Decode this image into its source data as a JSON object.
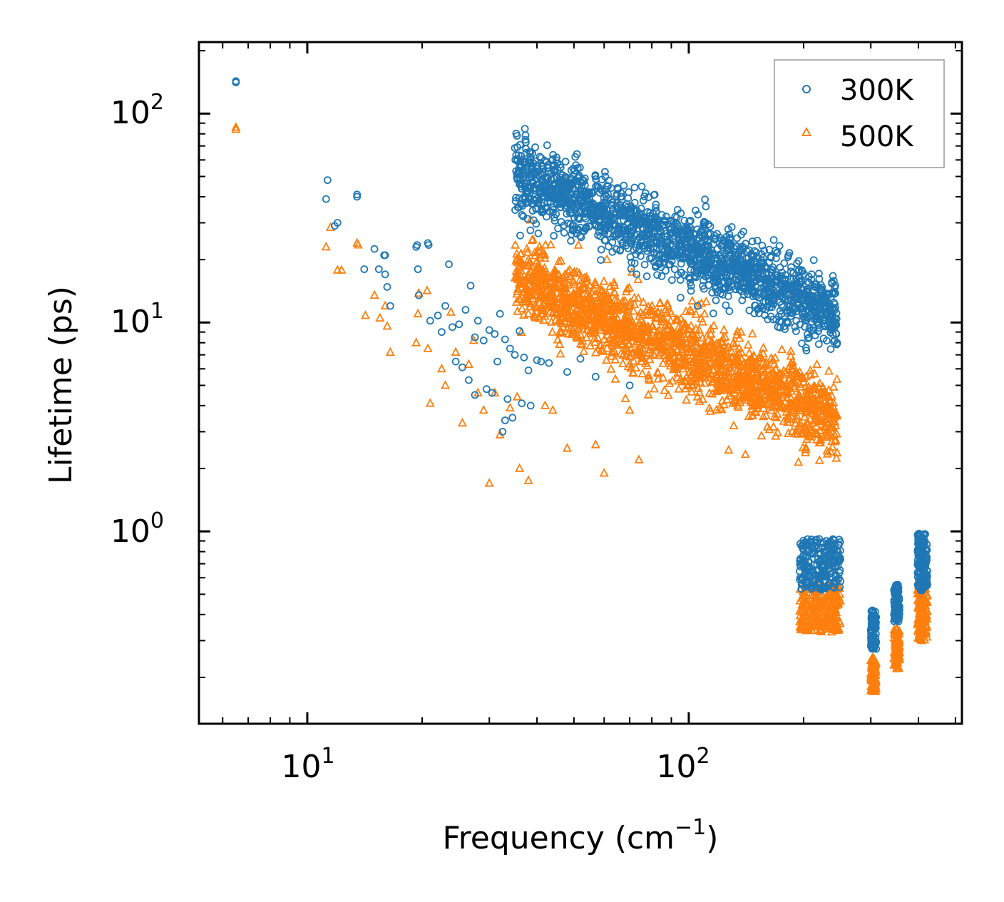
{
  "chart_data": {
    "type": "scatter",
    "xscale": "log",
    "yscale": "log",
    "xlim": [
      5.2,
      520
    ],
    "ylim": [
      0.12,
      220
    ],
    "xlabel": {
      "text": "Frequency (cm",
      "sup": "−1",
      "tail": ")"
    },
    "ylabel": "Lifetime (ps)",
    "x_ticks": [
      {
        "value": 10,
        "base": "10",
        "exp": "1"
      },
      {
        "value": 100,
        "base": "10",
        "exp": "2"
      }
    ],
    "y_ticks": [
      {
        "value": 1,
        "base": "10",
        "exp": "0"
      },
      {
        "value": 10,
        "base": "10",
        "exp": "1"
      },
      {
        "value": 100,
        "base": "10",
        "exp": "2"
      }
    ],
    "legend_position": "top-right",
    "series": [
      {
        "name": "300K",
        "marker": "circle",
        "color": "#1f77b4",
        "points": [
          [
            6.5,
            143
          ],
          [
            6.5,
            141
          ],
          [
            11.3,
            48
          ],
          [
            11.2,
            39
          ],
          [
            11.8,
            29
          ],
          [
            12.0,
            30
          ],
          [
            13.5,
            41
          ],
          [
            13.5,
            40
          ],
          [
            14.1,
            18
          ],
          [
            15.0,
            22.5
          ],
          [
            15.4,
            18
          ],
          [
            15.9,
            21
          ],
          [
            16.0,
            21
          ],
          [
            16.0,
            17
          ],
          [
            16.2,
            14.8
          ],
          [
            16.5,
            12
          ],
          [
            19.3,
            23
          ],
          [
            19.4,
            23.5
          ],
          [
            19.5,
            18
          ],
          [
            19.6,
            13.5
          ],
          [
            20.7,
            24
          ],
          [
            20.8,
            23.5
          ],
          [
            21.0,
            10.2
          ],
          [
            22.0,
            10.8
          ],
          [
            22.5,
            9
          ],
          [
            23.0,
            12
          ],
          [
            23.5,
            19
          ],
          [
            24.0,
            9.5
          ],
          [
            25.0,
            9.8
          ],
          [
            26.0,
            11.5
          ],
          [
            26.8,
            15
          ],
          [
            27.5,
            8.5
          ],
          [
            28.0,
            10.2
          ],
          [
            29.0,
            8.2
          ],
          [
            30.0,
            9.2
          ],
          [
            31.0,
            8.8
          ],
          [
            32.0,
            11
          ],
          [
            33.0,
            8.3
          ],
          [
            34.0,
            7.5
          ],
          [
            35.0,
            7.0
          ],
          [
            36.0,
            9.1
          ],
          [
            37.0,
            6.8
          ],
          [
            38.0,
            5.9
          ],
          [
            40.0,
            6.6
          ],
          [
            41.0,
            6.5
          ],
          [
            43.0,
            6.4
          ],
          [
            48.0,
            5.8
          ],
          [
            52.0,
            6.7
          ],
          [
            57.0,
            5.5
          ],
          [
            70.0,
            5.0
          ],
          [
            30.5,
            4.6
          ],
          [
            31.5,
            6.5
          ],
          [
            33.5,
            4.3
          ],
          [
            34.5,
            3.5
          ],
          [
            36.5,
            4.1
          ],
          [
            38.5,
            4.0
          ],
          [
            24.5,
            6.5
          ],
          [
            25.5,
            6.1
          ],
          [
            26.5,
            5.3
          ],
          [
            27.5,
            4.5
          ],
          [
            29.5,
            4.8
          ],
          [
            32.5,
            3.0
          ],
          [
            33.0,
            3.4
          ]
        ]
      },
      {
        "name": "500K",
        "marker": "triangle",
        "color": "#ff7f0e",
        "points": [
          [
            6.5,
            86
          ],
          [
            6.5,
            84
          ],
          [
            11.2,
            23
          ],
          [
            11.5,
            28.5
          ],
          [
            12.0,
            17.8
          ],
          [
            12.3,
            17.8
          ],
          [
            13.5,
            24
          ],
          [
            13.6,
            23.5
          ],
          [
            14.2,
            10.8
          ],
          [
            15.0,
            13.5
          ],
          [
            15.5,
            10.5
          ],
          [
            16.0,
            12
          ],
          [
            16.2,
            9.6
          ],
          [
            16.5,
            7.2
          ],
          [
            19.3,
            8
          ],
          [
            19.5,
            11
          ],
          [
            19.6,
            13.8
          ],
          [
            20.6,
            14.2
          ],
          [
            20.7,
            7.5
          ],
          [
            21.0,
            4.1
          ],
          [
            22.5,
            6
          ],
          [
            23.0,
            5.0
          ],
          [
            23.8,
            11.2
          ],
          [
            24.5,
            7.2
          ],
          [
            25.5,
            3.3
          ],
          [
            26.5,
            6.3
          ],
          [
            27.3,
            8.2
          ],
          [
            28.0,
            4.6
          ],
          [
            29.0,
            3.8
          ],
          [
            30.0,
            1.7
          ],
          [
            31.0,
            4.6
          ],
          [
            32.0,
            2.9
          ],
          [
            34.0,
            3.9
          ],
          [
            35.5,
            4.4
          ],
          [
            36.0,
            2.0
          ],
          [
            38.0,
            1.75
          ],
          [
            42.0,
            4.0
          ],
          [
            44.0,
            3.8
          ],
          [
            48.0,
            2.5
          ],
          [
            57.0,
            2.6
          ],
          [
            60.0,
            1.9
          ],
          [
            70.0,
            3.8
          ],
          [
            74.0,
            2.2
          ]
        ]
      }
    ],
    "dense_regions": [
      {
        "series": "300K",
        "x_start": 35,
        "x_end": 245,
        "a": 2.95,
        "b": -0.8,
        "center_frac": 0.52,
        "spread": 0.14,
        "count": 1800,
        "bumps": [
          [
            55,
            4.9
          ],
          [
            90,
            3.2
          ]
        ]
      },
      {
        "series": "500K",
        "x_start": 35,
        "x_end": 245,
        "a": 2.45,
        "b": -0.8,
        "center_frac": 0.52,
        "spread": 0.15,
        "count": 1800,
        "bumps": [
          [
            48,
            2.8
          ],
          [
            90,
            2.2
          ]
        ]
      },
      {
        "series": "300K",
        "x_start": 195,
        "x_end": 250,
        "ymin": 0.52,
        "ymax": 0.92,
        "count": 240
      },
      {
        "series": "500K",
        "x_start": 195,
        "x_end": 250,
        "ymin": 0.33,
        "ymax": 0.55,
        "count": 240
      },
      {
        "series": "300K",
        "x_start": 300,
        "x_end": 310,
        "ymin": 0.27,
        "ymax": 0.42,
        "count": 90
      },
      {
        "series": "500K",
        "x_start": 300,
        "x_end": 310,
        "ymin": 0.17,
        "ymax": 0.25,
        "count": 90
      },
      {
        "series": "300K",
        "x_start": 345,
        "x_end": 357,
        "ymin": 0.37,
        "ymax": 0.56,
        "count": 90
      },
      {
        "series": "500K",
        "x_start": 345,
        "x_end": 357,
        "ymin": 0.22,
        "ymax": 0.34,
        "count": 90
      },
      {
        "series": "300K",
        "x_start": 398,
        "x_end": 422,
        "ymin": 0.52,
        "ymax": 0.98,
        "count": 160
      },
      {
        "series": "500K",
        "x_start": 398,
        "x_end": 422,
        "ymin": 0.3,
        "ymax": 0.6,
        "count": 160
      }
    ]
  }
}
